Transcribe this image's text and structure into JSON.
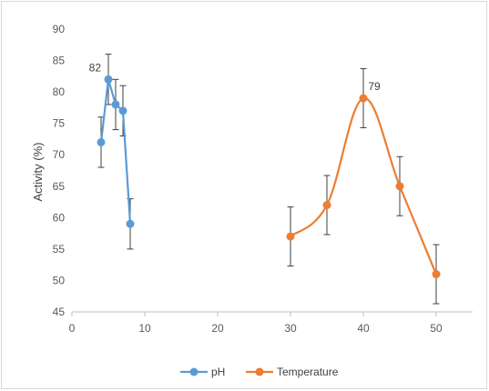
{
  "chart_data": {
    "type": "scatter",
    "title": "",
    "xlabel": "",
    "ylabel": "Activity (%)",
    "xlim": [
      0,
      55
    ],
    "ylim": [
      45,
      90
    ],
    "x_ticks": [
      0,
      10,
      20,
      30,
      40,
      50
    ],
    "y_ticks": [
      45,
      50,
      55,
      60,
      65,
      70,
      75,
      80,
      85,
      90
    ],
    "grid": false,
    "legend_position": "bottom",
    "series": [
      {
        "name": "pH",
        "color": "#5B9BD5",
        "x": [
          4,
          5,
          6,
          7,
          8
        ],
        "y": [
          72,
          82,
          78,
          77,
          59
        ],
        "error": [
          4,
          4,
          4,
          4,
          4
        ],
        "smooth": false,
        "labels": [
          {
            "x": 5,
            "y": 82,
            "text": "82"
          }
        ]
      },
      {
        "name": "Temperature",
        "color": "#ED7D31",
        "x": [
          30,
          35,
          40,
          45,
          50
        ],
        "y": [
          57,
          62,
          79,
          65,
          51
        ],
        "error": [
          4.7,
          4.7,
          4.7,
          4.7,
          4.7
        ],
        "smooth": true,
        "labels": [
          {
            "x": 40,
            "y": 79,
            "text": "79"
          }
        ]
      }
    ]
  }
}
